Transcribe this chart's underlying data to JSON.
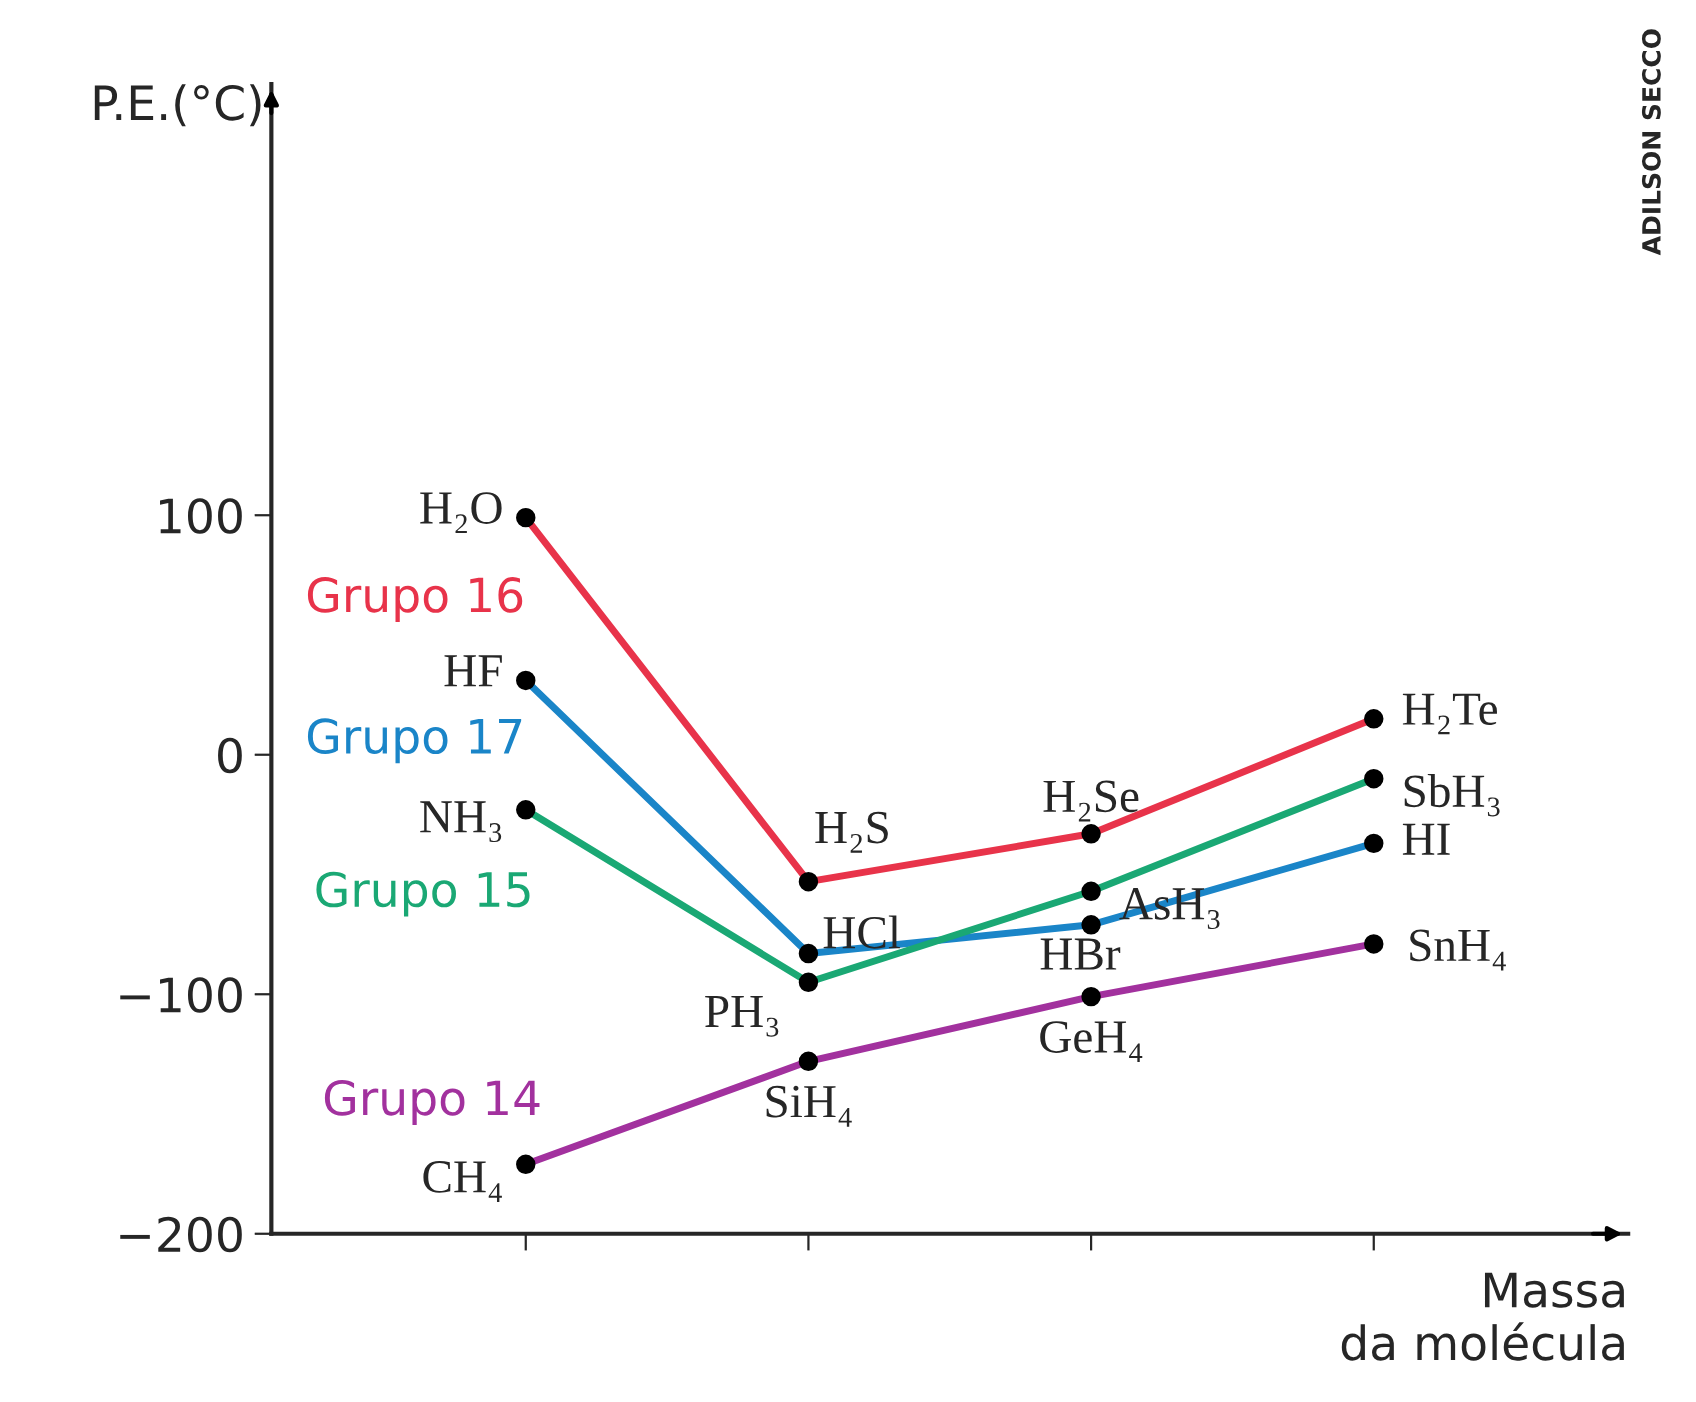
{
  "chart_data": {
    "type": "line",
    "ylabel": "P.E.(°C)",
    "xlabel": "Massa\nda molécula",
    "categories": [
      null,
      null,
      null,
      null
    ],
    "ylim": [
      -200,
      280
    ],
    "yticks": [
      100,
      0,
      {
        "value": -100,
        "label": "−100"
      },
      {
        "value": -200,
        "label": "−200"
      }
    ],
    "grid": false,
    "marker": "circle",
    "line_style": "solid",
    "annotations": [
      "ADILSON SECCO"
    ],
    "series": [
      {
        "name": "Grupo 16",
        "color": "#e8334a",
        "values": [
          99,
          -53,
          -33,
          15
        ],
        "value_labels": [
          "H₂O",
          "H₂S",
          "H₂Se",
          "H₂Te"
        ]
      },
      {
        "name": "Grupo 17",
        "color": "#1a85c8",
        "values": [
          31,
          -83,
          -71,
          -37
        ],
        "value_labels": [
          "HF",
          "HCl",
          "HBr",
          "HI"
        ]
      },
      {
        "name": "Grupo 15",
        "color": "#1aa874",
        "values": [
          -23,
          -95,
          -57,
          -10
        ],
        "value_labels": [
          "NH₃",
          "PH₃",
          "AsH₃",
          "SbH₃"
        ]
      },
      {
        "name": "Grupo 14",
        "color": "#a2319e",
        "values": [
          -171,
          -128,
          -101,
          -79
        ],
        "value_labels": [
          "CH₄",
          "SiH₄",
          "GeH₄",
          "SnH₄"
        ]
      }
    ]
  }
}
